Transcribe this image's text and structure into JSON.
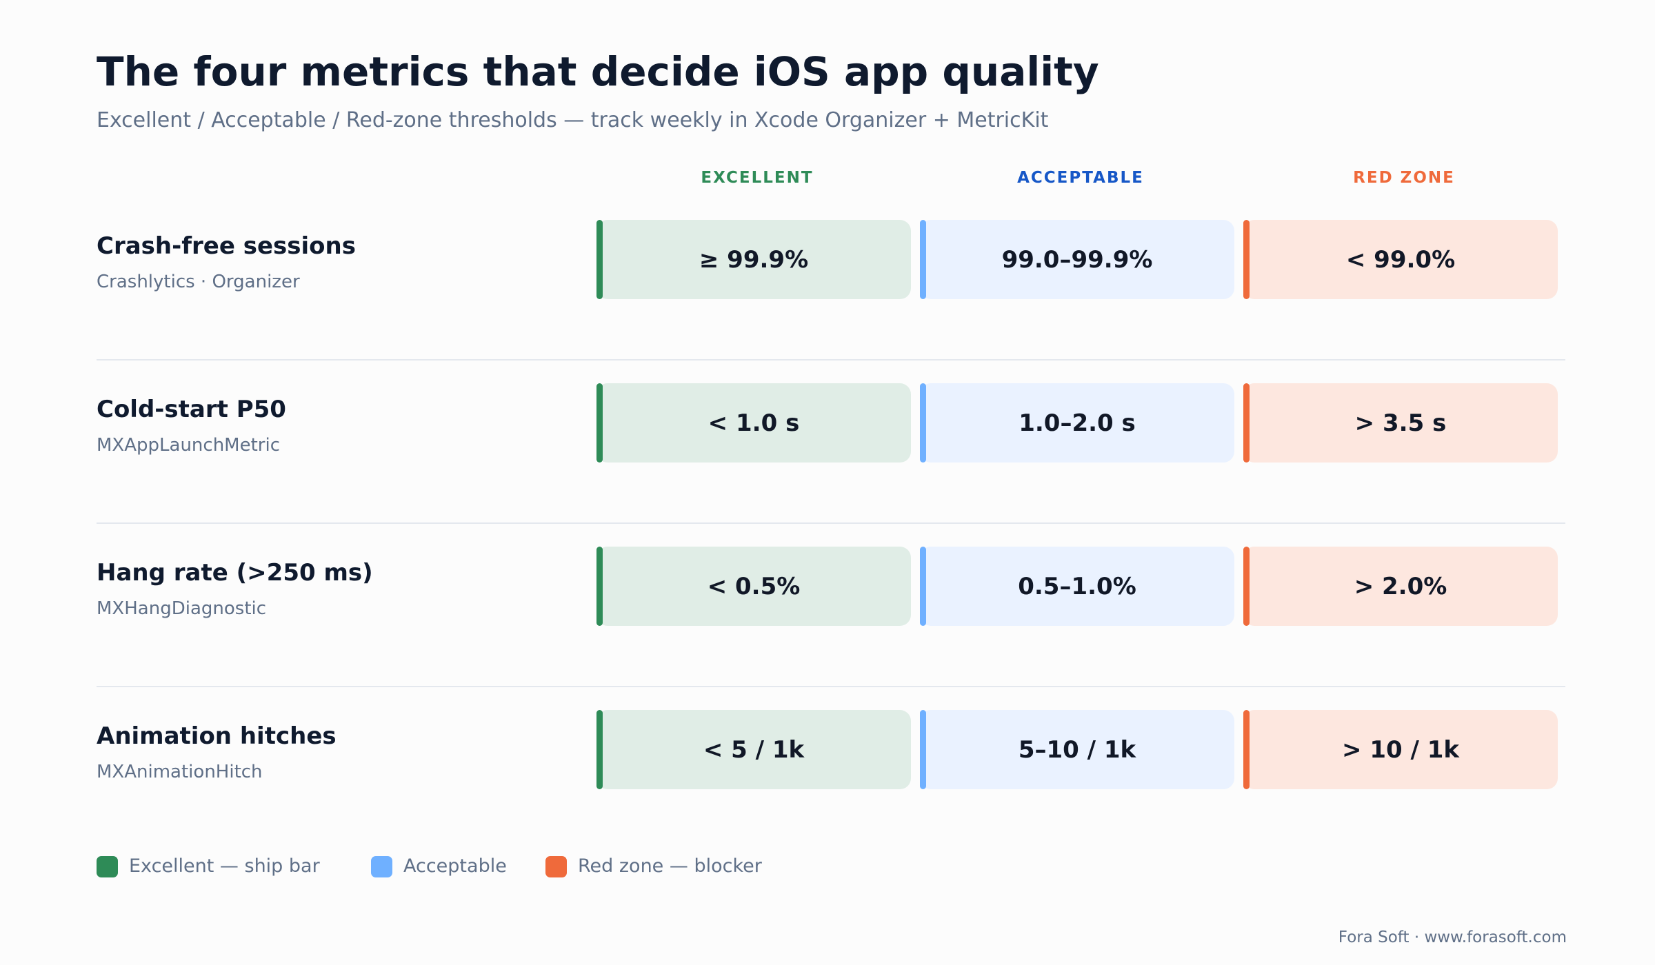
{
  "header": {
    "title": "The four metrics that decide iOS app quality",
    "subtitle": "Excellent / Acceptable / Red-zone thresholds — track weekly in Xcode Organizer + MetricKit"
  },
  "columns": [
    {
      "label": "EXCELLENT",
      "text_color": "#2e8b57",
      "accent_color": "#2e8b57",
      "cell_bg": "#e0ede6"
    },
    {
      "label": "ACCEPTABLE",
      "text_color": "#1657c7",
      "accent_color": "#6fb0ff",
      "cell_bg": "#eaf2ff"
    },
    {
      "label": "RED ZONE",
      "text_color": "#ef6a3b",
      "accent_color": "#ef6a3b",
      "cell_bg": "#fde7df"
    }
  ],
  "metrics": [
    {
      "name": "Crash-free sessions",
      "source": "Crashlytics · Organizer",
      "values": [
        "≥ 99.9%",
        "99.0–99.9%",
        "< 99.0%"
      ]
    },
    {
      "name": "Cold-start P50",
      "source": "MXAppLaunchMetric",
      "values": [
        "< 1.0 s",
        "1.0–2.0 s",
        "> 3.5 s"
      ]
    },
    {
      "name": "Hang rate (>250 ms)",
      "source": "MXHangDiagnostic",
      "values": [
        "< 0.5%",
        "0.5–1.0%",
        "> 2.0%"
      ]
    },
    {
      "name": "Animation hitches",
      "source": "MXAnimationHitch",
      "values": [
        "< 5 / 1k",
        "5–10 / 1k",
        "> 10 / 1k"
      ]
    }
  ],
  "legend": [
    {
      "label": "Excellent — ship bar",
      "color": "#2e8b57"
    },
    {
      "label": "Acceptable",
      "color": "#6fb0ff"
    },
    {
      "label": "Red zone — blocker",
      "color": "#ef6a3b"
    }
  ],
  "footer": {
    "text": "Fora Soft · www.forasoft.com"
  }
}
